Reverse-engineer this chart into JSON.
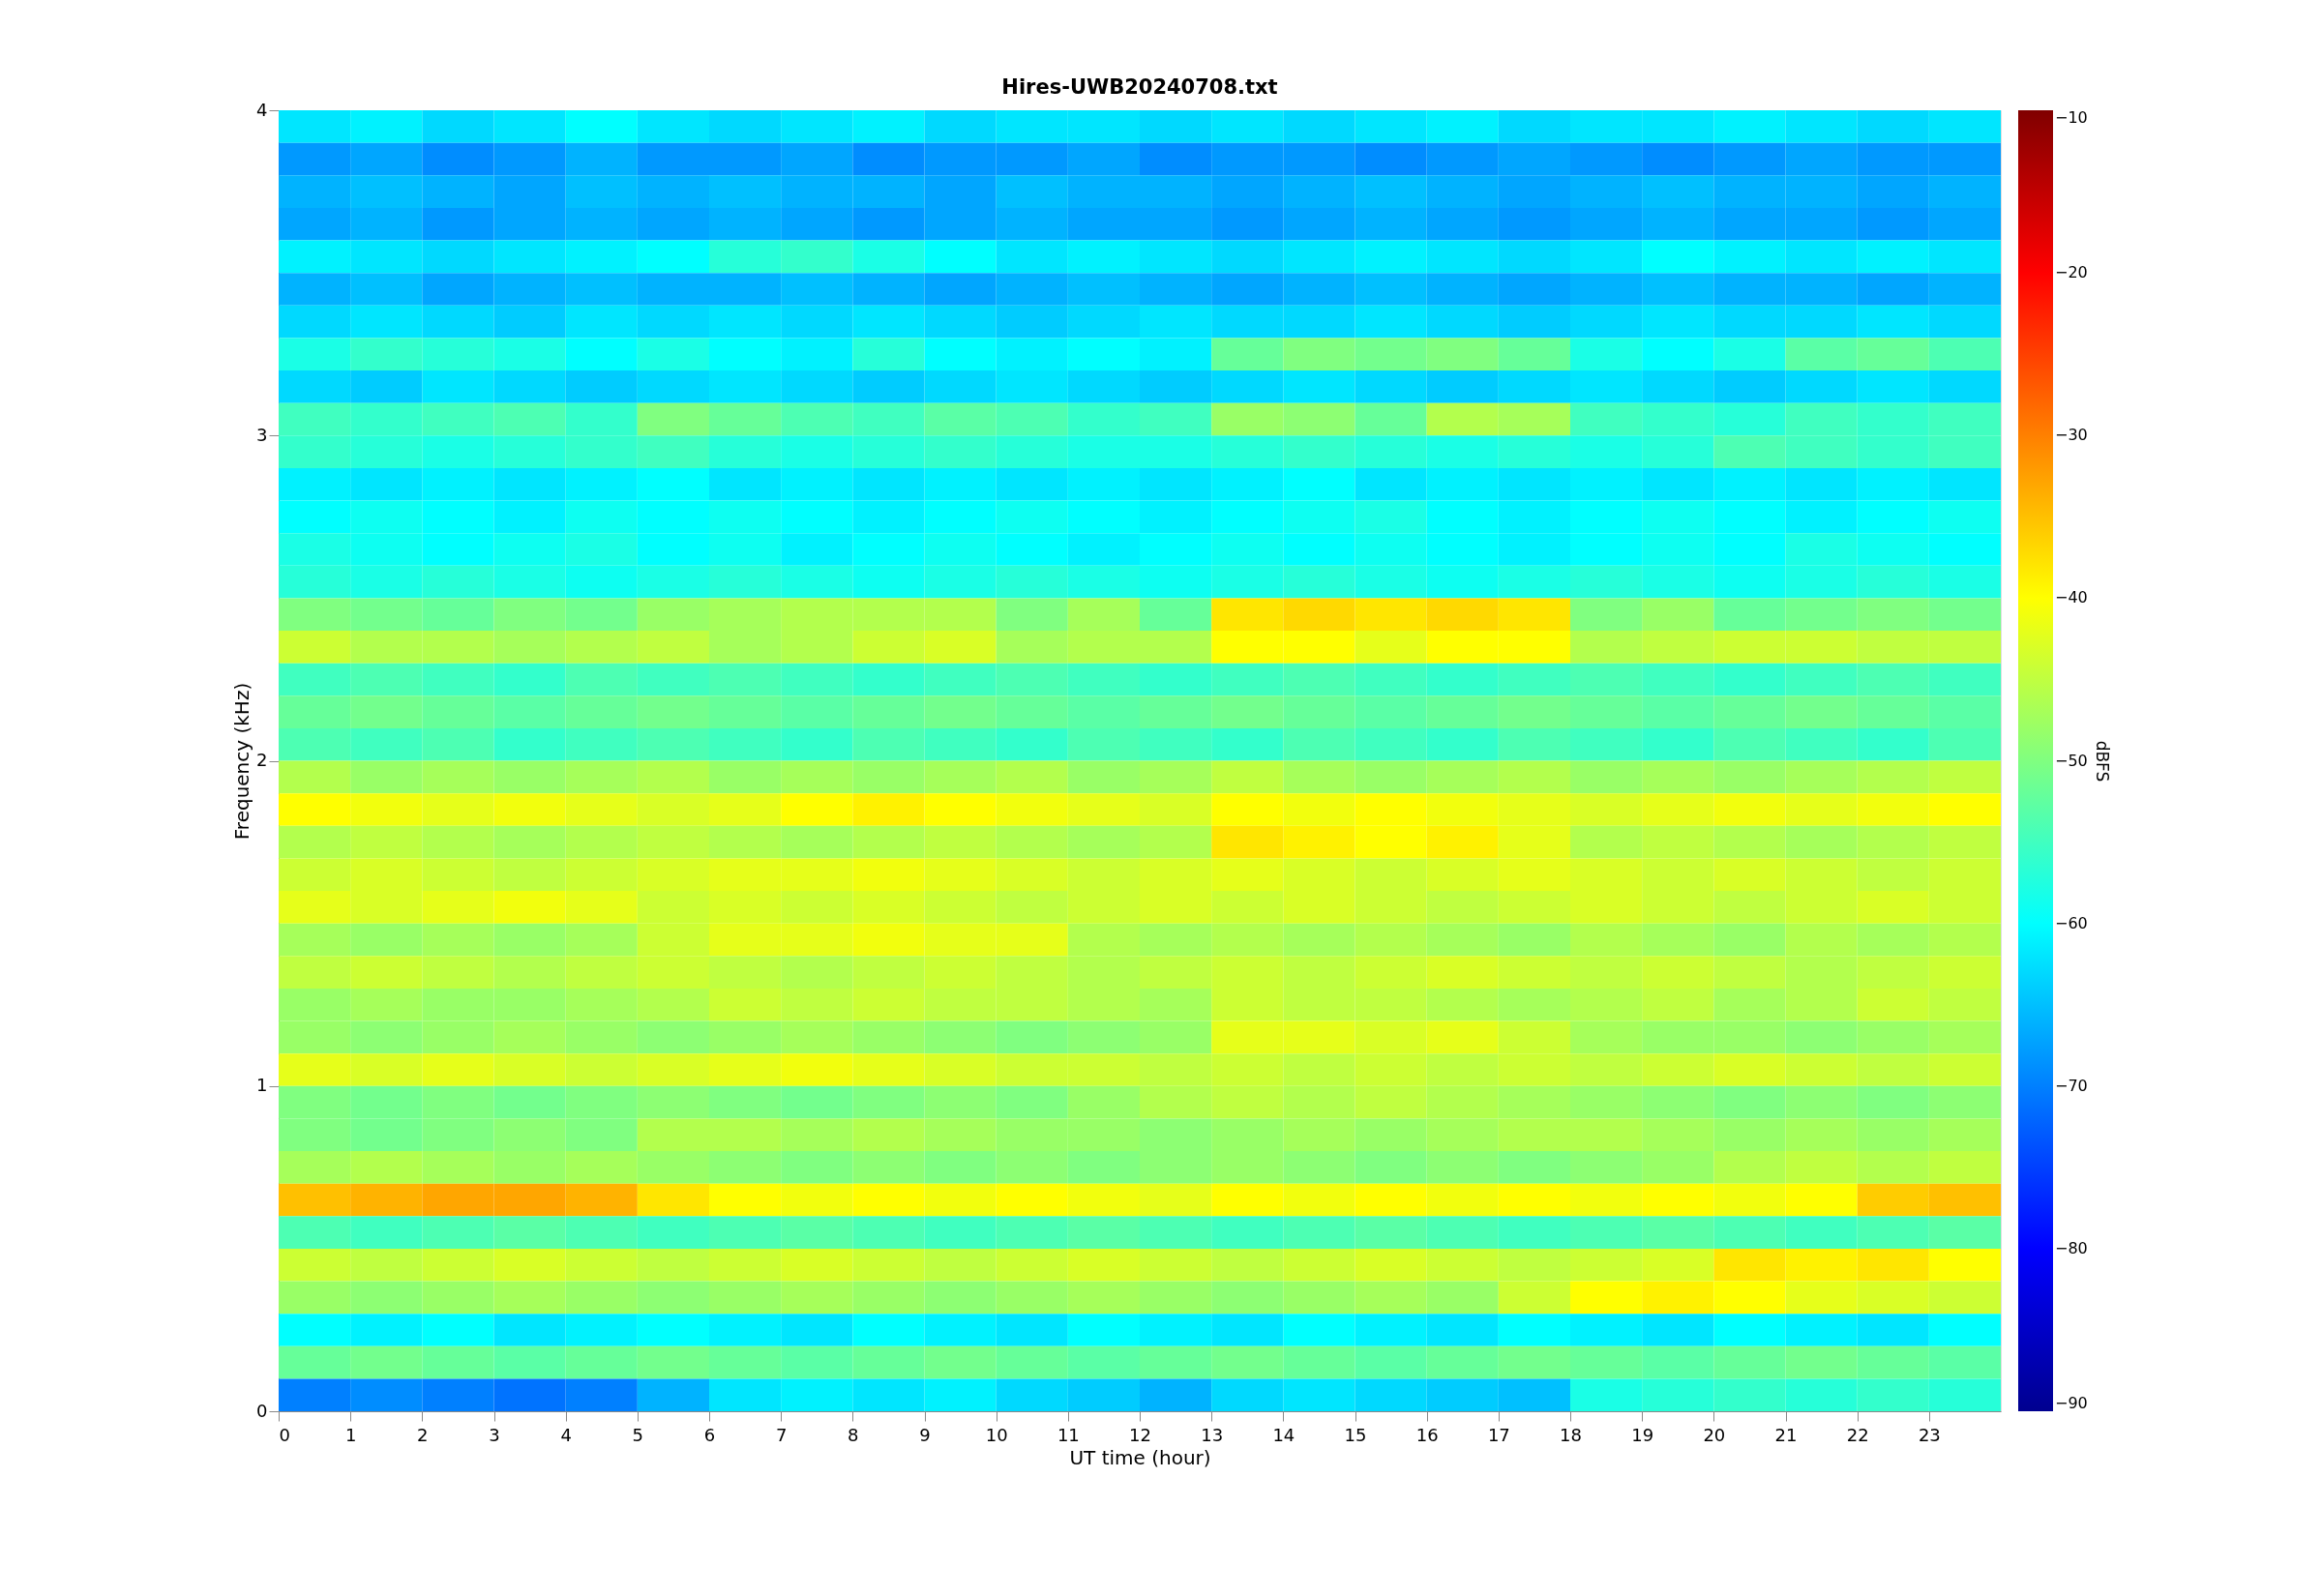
{
  "chart_data": {
    "type": "heatmap",
    "title": "Hires-UWB20240708.txt",
    "xlabel": "UT time (hour)",
    "ylabel": "Frequency (kHz)",
    "clabel": "dBFS",
    "x": [
      0.5,
      1.5,
      2.5,
      3.5,
      4.5,
      5.5,
      6.5,
      7.5,
      8.5,
      9.5,
      10.5,
      11.5,
      12.5,
      13.5,
      14.5,
      15.5,
      16.5,
      17.5,
      18.5,
      19.5,
      20.5,
      21.5,
      22.5,
      23.5
    ],
    "xlim": [
      0,
      24
    ],
    "xticks": [
      0,
      1,
      2,
      3,
      4,
      5,
      6,
      7,
      8,
      9,
      10,
      11,
      12,
      13,
      14,
      15,
      16,
      17,
      18,
      19,
      20,
      21,
      22,
      23
    ],
    "ylim": [
      0,
      4
    ],
    "yticks": [
      0,
      1,
      2,
      3,
      4
    ],
    "clim": [
      -90,
      -10
    ],
    "cticks": [
      -90,
      -80,
      -70,
      -60,
      -50,
      -40,
      -30,
      -20,
      -10
    ],
    "grid": false,
    "cells": [
      [
        -62,
        -61,
        -63,
        -62,
        -60,
        -62,
        -63,
        -62,
        -61,
        -63,
        -62,
        -62,
        -63,
        -62,
        -63,
        -62,
        -61,
        -63,
        -62,
        -62,
        -61,
        -62,
        -63,
        -62
      ],
      [
        -68,
        -67,
        -69,
        -68,
        -66,
        -68,
        -68,
        -67,
        -69,
        -68,
        -68,
        -67,
        -69,
        -68,
        -68,
        -69,
        -68,
        -67,
        -68,
        -69,
        -68,
        -67,
        -68,
        -68
      ],
      [
        -66,
        -65,
        -66,
        -67,
        -65,
        -66,
        -65,
        -66,
        -66,
        -67,
        -65,
        -66,
        -66,
        -67,
        -66,
        -65,
        -66,
        -67,
        -66,
        -65,
        -66,
        -66,
        -67,
        -66
      ],
      [
        -67,
        -66,
        -68,
        -67,
        -66,
        -67,
        -66,
        -67,
        -68,
        -67,
        -66,
        -67,
        -67,
        -68,
        -67,
        -66,
        -67,
        -68,
        -67,
        -66,
        -67,
        -67,
        -68,
        -67
      ],
      [
        -61,
        -62,
        -63,
        -62,
        -61,
        -60,
        -57,
        -56,
        -58,
        -60,
        -62,
        -61,
        -62,
        -63,
        -62,
        -61,
        -62,
        -63,
        -62,
        -60,
        -61,
        -62,
        -61,
        -62
      ],
      [
        -66,
        -65,
        -67,
        -66,
        -65,
        -66,
        -66,
        -65,
        -66,
        -67,
        -66,
        -65,
        -66,
        -67,
        -66,
        -65,
        -66,
        -67,
        -66,
        -65,
        -66,
        -66,
        -67,
        -66
      ],
      [
        -63,
        -62,
        -63,
        -64,
        -62,
        -63,
        -62,
        -63,
        -62,
        -63,
        -64,
        -63,
        -62,
        -63,
        -63,
        -62,
        -63,
        -64,
        -63,
        -62,
        -63,
        -63,
        -62,
        -63
      ],
      [
        -58,
        -56,
        -57,
        -58,
        -60,
        -58,
        -60,
        -61,
        -57,
        -60,
        -61,
        -60,
        -61,
        -52,
        -50,
        -51,
        -50,
        -52,
        -58,
        -60,
        -58,
        -53,
        -52,
        -54
      ],
      [
        -63,
        -64,
        -62,
        -63,
        -64,
        -63,
        -62,
        -63,
        -64,
        -63,
        -62,
        -63,
        -64,
        -63,
        -62,
        -63,
        -64,
        -63,
        -62,
        -63,
        -64,
        -63,
        -62,
        -63
      ],
      [
        -55,
        -56,
        -55,
        -54,
        -56,
        -50,
        -52,
        -54,
        -55,
        -53,
        -54,
        -56,
        -55,
        -48,
        -49,
        -52,
        -46,
        -47,
        -55,
        -56,
        -57,
        -55,
        -56,
        -55
      ],
      [
        -56,
        -57,
        -58,
        -57,
        -56,
        -55,
        -57,
        -58,
        -57,
        -56,
        -57,
        -58,
        -58,
        -57,
        -56,
        -57,
        -58,
        -57,
        -58,
        -57,
        -54,
        -55,
        -56,
        -55
      ],
      [
        -61,
        -62,
        -61,
        -62,
        -61,
        -60,
        -62,
        -61,
        -62,
        -61,
        -62,
        -61,
        -62,
        -61,
        -60,
        -62,
        -61,
        -62,
        -61,
        -62,
        -61,
        -62,
        -61,
        -62
      ],
      [
        -60,
        -59,
        -60,
        -61,
        -59,
        -60,
        -59,
        -60,
        -61,
        -60,
        -59,
        -60,
        -61,
        -60,
        -59,
        -58,
        -60,
        -61,
        -60,
        -59,
        -60,
        -61,
        -60,
        -59
      ],
      [
        -58,
        -59,
        -60,
        -59,
        -58,
        -60,
        -59,
        -61,
        -60,
        -59,
        -60,
        -61,
        -60,
        -59,
        -60,
        -59,
        -60,
        -61,
        -60,
        -59,
        -60,
        -58,
        -59,
        -60
      ],
      [
        -57,
        -58,
        -57,
        -58,
        -59,
        -58,
        -57,
        -58,
        -59,
        -58,
        -57,
        -58,
        -59,
        -58,
        -57,
        -58,
        -59,
        -58,
        -57,
        -58,
        -59,
        -58,
        -57,
        -58
      ],
      [
        -50,
        -51,
        -52,
        -50,
        -51,
        -48,
        -47,
        -46,
        -46,
        -46,
        -50,
        -47,
        -52,
        -38,
        -37,
        -38,
        -37,
        -38,
        -50,
        -48,
        -52,
        -51,
        -50,
        -51
      ],
      [
        -44,
        -46,
        -46,
        -47,
        -46,
        -45,
        -47,
        -46,
        -44,
        -43,
        -47,
        -46,
        -46,
        -40,
        -40,
        -42,
        -40,
        -40,
        -46,
        -45,
        -44,
        -44,
        -45,
        -45
      ],
      [
        -55,
        -54,
        -55,
        -56,
        -54,
        -55,
        -54,
        -55,
        -56,
        -55,
        -54,
        -55,
        -56,
        -55,
        -54,
        -55,
        -56,
        -55,
        -54,
        -55,
        -56,
        -55,
        -54,
        -55
      ],
      [
        -52,
        -51,
        -52,
        -53,
        -52,
        -51,
        -52,
        -53,
        -52,
        -51,
        -52,
        -53,
        -52,
        -51,
        -52,
        -53,
        -52,
        -51,
        -52,
        -53,
        -52,
        -51,
        -52,
        -53
      ],
      [
        -54,
        -55,
        -54,
        -56,
        -55,
        -54,
        -55,
        -56,
        -54,
        -55,
        -56,
        -54,
        -55,
        -56,
        -54,
        -55,
        -56,
        -54,
        -55,
        -56,
        -54,
        -55,
        -56,
        -54
      ],
      [
        -46,
        -48,
        -47,
        -48,
        -47,
        -46,
        -48,
        -47,
        -48,
        -47,
        -46,
        -48,
        -47,
        -45,
        -47,
        -48,
        -47,
        -46,
        -48,
        -47,
        -48,
        -47,
        -46,
        -45
      ],
      [
        -40,
        -41,
        -42,
        -41,
        -42,
        -43,
        -42,
        -40,
        -39,
        -40,
        -41,
        -42,
        -43,
        -40,
        -41,
        -40,
        -41,
        -42,
        -43,
        -42,
        -41,
        -42,
        -41,
        -40
      ],
      [
        -46,
        -45,
        -46,
        -47,
        -46,
        -45,
        -46,
        -47,
        -46,
        -45,
        -46,
        -47,
        -46,
        -38,
        -39,
        -40,
        -39,
        -42,
        -46,
        -45,
        -46,
        -47,
        -46,
        -45
      ],
      [
        -44,
        -43,
        -44,
        -45,
        -44,
        -43,
        -42,
        -42,
        -41,
        -42,
        -43,
        -44,
        -43,
        -42,
        -43,
        -44,
        -43,
        -42,
        -43,
        -44,
        -43,
        -44,
        -45,
        -44
      ],
      [
        -42,
        -43,
        -42,
        -41,
        -42,
        -44,
        -43,
        -44,
        -43,
        -44,
        -45,
        -44,
        -43,
        -44,
        -43,
        -44,
        -45,
        -44,
        -43,
        -44,
        -45,
        -44,
        -43,
        -44
      ],
      [
        -47,
        -48,
        -47,
        -48,
        -47,
        -44,
        -42,
        -42,
        -41,
        -42,
        -42,
        -46,
        -47,
        -46,
        -47,
        -46,
        -47,
        -48,
        -46,
        -47,
        -48,
        -46,
        -47,
        -46
      ],
      [
        -45,
        -44,
        -45,
        -46,
        -45,
        -44,
        -45,
        -46,
        -45,
        -44,
        -45,
        -46,
        -45,
        -44,
        -45,
        -44,
        -43,
        -44,
        -45,
        -44,
        -45,
        -46,
        -45,
        -44
      ],
      [
        -48,
        -47,
        -48,
        -48,
        -47,
        -46,
        -44,
        -45,
        -44,
        -45,
        -45,
        -46,
        -47,
        -44,
        -45,
        -45,
        -46,
        -47,
        -46,
        -45,
        -47,
        -46,
        -44,
        -45
      ],
      [
        -48,
        -49,
        -48,
        -47,
        -48,
        -49,
        -48,
        -47,
        -48,
        -49,
        -50,
        -49,
        -48,
        -42,
        -42,
        -43,
        -42,
        -44,
        -47,
        -48,
        -48,
        -49,
        -48,
        -47
      ],
      [
        -42,
        -43,
        -42,
        -43,
        -44,
        -43,
        -42,
        -41,
        -42,
        -43,
        -44,
        -44,
        -45,
        -44,
        -45,
        -44,
        -45,
        -44,
        -45,
        -44,
        -43,
        -44,
        -45,
        -44
      ],
      [
        -50,
        -51,
        -50,
        -51,
        -50,
        -49,
        -50,
        -51,
        -50,
        -49,
        -50,
        -48,
        -46,
        -45,
        -46,
        -45,
        -46,
        -47,
        -48,
        -49,
        -50,
        -49,
        -50,
        -49
      ],
      [
        -50,
        -51,
        -50,
        -49,
        -50,
        -46,
        -46,
        -47,
        -46,
        -47,
        -48,
        -48,
        -49,
        -48,
        -47,
        -48,
        -47,
        -46,
        -46,
        -47,
        -48,
        -47,
        -48,
        -47
      ],
      [
        -47,
        -46,
        -47,
        -48,
        -47,
        -48,
        -49,
        -50,
        -49,
        -50,
        -49,
        -50,
        -49,
        -48,
        -49,
        -50,
        -49,
        -50,
        -49,
        -48,
        -46,
        -45,
        -46,
        -45
      ],
      [
        -35,
        -34,
        -33,
        -33,
        -34,
        -38,
        -40,
        -41,
        -40,
        -41,
        -40,
        -41,
        -42,
        -40,
        -41,
        -40,
        -41,
        -40,
        -41,
        -40,
        -41,
        -40,
        -36,
        -35
      ],
      [
        -54,
        -55,
        -54,
        -53,
        -54,
        -55,
        -54,
        -53,
        -54,
        -55,
        -54,
        -53,
        -54,
        -55,
        -54,
        -53,
        -54,
        -55,
        -54,
        -53,
        -54,
        -55,
        -54,
        -53
      ],
      [
        -44,
        -45,
        -44,
        -43,
        -44,
        -45,
        -44,
        -43,
        -44,
        -45,
        -44,
        -43,
        -44,
        -45,
        -44,
        -43,
        -44,
        -45,
        -44,
        -43,
        -38,
        -39,
        -38,
        -40
      ],
      [
        -48,
        -49,
        -48,
        -47,
        -48,
        -49,
        -48,
        -47,
        -48,
        -49,
        -48,
        -47,
        -48,
        -49,
        -48,
        -47,
        -48,
        -44,
        -40,
        -39,
        -40,
        -42,
        -43,
        -44
      ],
      [
        -60,
        -61,
        -60,
        -62,
        -61,
        -60,
        -61,
        -62,
        -60,
        -61,
        -62,
        -60,
        -61,
        -62,
        -60,
        -61,
        -62,
        -60,
        -61,
        -62,
        -60,
        -61,
        -62,
        -60
      ],
      [
        -52,
        -51,
        -52,
        -53,
        -52,
        -51,
        -52,
        -53,
        -52,
        -51,
        -52,
        -53,
        -52,
        -51,
        -52,
        -53,
        -52,
        -51,
        -52,
        -53,
        -52,
        -51,
        -52,
        -53
      ],
      [
        -70,
        -69,
        -70,
        -71,
        -70,
        -66,
        -62,
        -61,
        -62,
        -61,
        -63,
        -64,
        -66,
        -63,
        -62,
        -63,
        -64,
        -65,
        -58,
        -57,
        -56,
        -57,
        -56,
        -57
      ]
    ]
  }
}
